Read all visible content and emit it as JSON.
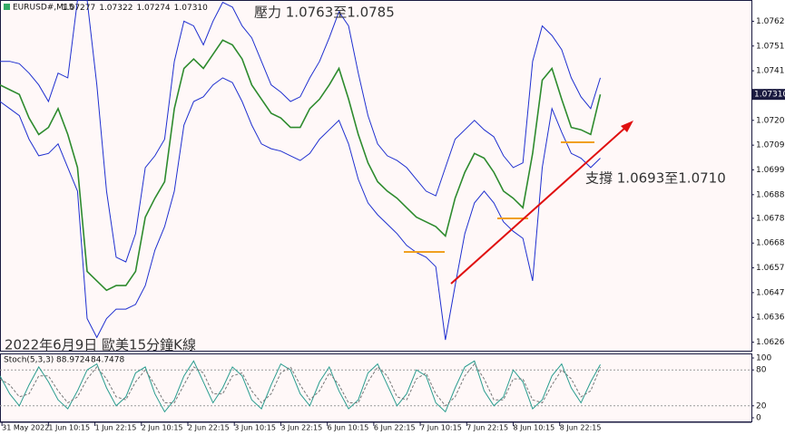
{
  "chart_data": [
    {
      "type": "line",
      "title": "EURUSD#,M15",
      "ohlc": [
        "1.07277",
        "1.07322",
        "1.07274",
        "1.07310"
      ],
      "x": [
        0,
        10,
        20,
        30,
        40,
        50,
        60,
        70,
        80,
        90,
        100,
        110,
        120,
        130,
        140,
        150,
        160,
        170,
        180,
        190,
        200,
        210,
        220,
        230,
        240,
        250,
        260,
        270,
        280,
        290,
        300,
        310,
        320,
        330,
        340,
        350,
        360,
        370,
        380,
        390,
        400,
        410,
        420,
        430,
        440,
        450,
        460,
        470,
        480,
        490,
        500,
        510,
        520,
        530,
        540,
        550,
        560,
        570,
        580,
        590,
        600,
        610,
        620
      ],
      "series": [
        {
          "color": "#2e8b2e",
          "values": [
            1.0735,
            1.0733,
            1.0731,
            1.0721,
            1.0714,
            1.0717,
            1.0725,
            1.0714,
            1.07,
            1.0656,
            1.0652,
            1.0648,
            1.065,
            1.065,
            1.0656,
            1.0679,
            1.0687,
            1.0694,
            1.0725,
            1.0742,
            1.0746,
            1.0742,
            1.0748,
            1.0754,
            1.0752,
            1.0746,
            1.0735,
            1.0729,
            1.0723,
            1.0721,
            1.0717,
            1.0717,
            1.0725,
            1.0729,
            1.0735,
            1.0742,
            1.0729,
            1.0714,
            1.0702,
            1.0694,
            1.069,
            1.0687,
            1.0683,
            1.0679,
            1.0677,
            1.0675,
            1.0671,
            1.0687,
            1.0698,
            1.0706,
            1.0704,
            1.0698,
            1.069,
            1.0687,
            1.0683,
            1.0706,
            1.0737,
            1.0742,
            1.0729,
            1.0717,
            1.0716,
            1.0714,
            1.0731
          ]
        },
        {
          "color": "#1f2fd0",
          "values": [
            1.0745,
            1.0745,
            1.0744,
            1.074,
            1.0735,
            1.0728,
            1.074,
            1.0738,
            1.0771,
            1.0771,
            1.0735,
            1.069,
            1.0662,
            1.066,
            1.0672,
            1.07,
            1.0705,
            1.0712,
            1.0745,
            1.0762,
            1.076,
            1.0752,
            1.0762,
            1.077,
            1.0768,
            1.076,
            1.0755,
            1.0745,
            1.0735,
            1.0732,
            1.0728,
            1.073,
            1.0738,
            1.0745,
            1.0755,
            1.0766,
            1.076,
            1.074,
            1.0722,
            1.071,
            1.0705,
            1.0703,
            1.07,
            1.0695,
            1.069,
            1.0688,
            1.07,
            1.0712,
            1.0716,
            1.072,
            1.0716,
            1.0713,
            1.0705,
            1.07,
            1.0702,
            1.0745,
            1.076,
            1.0756,
            1.075,
            1.0738,
            1.073,
            1.0725,
            1.0738
          ]
        },
        {
          "color": "#1f2fd0",
          "values": [
            1.0728,
            1.0725,
            1.0722,
            1.0712,
            1.0705,
            1.0706,
            1.071,
            1.07,
            1.069,
            1.0636,
            1.0628,
            1.0636,
            1.064,
            1.064,
            1.0642,
            1.065,
            1.0665,
            1.0675,
            1.069,
            1.0718,
            1.0728,
            1.073,
            1.0735,
            1.0738,
            1.0736,
            1.0728,
            1.0718,
            1.071,
            1.0708,
            1.0707,
            1.0705,
            1.0703,
            1.0706,
            1.0712,
            1.0716,
            1.072,
            1.071,
            1.0695,
            1.0685,
            1.068,
            1.0676,
            1.0672,
            1.0667,
            1.0664,
            1.0662,
            1.0658,
            1.0627,
            1.065,
            1.0672,
            1.0685,
            1.069,
            1.0685,
            1.0677,
            1.0673,
            1.067,
            1.0652,
            1.07,
            1.0725,
            1.0715,
            1.0706,
            1.0704,
            1.07,
            1.0704
          ]
        }
      ],
      "xlim": [
        0,
        776
      ],
      "ylim": [
        1.0622,
        1.0771
      ],
      "yticks": [
        {
          "value": 1.0762,
          "label": "1.07620"
        },
        {
          "value": 1.07515,
          "label": "1.07515"
        },
        {
          "value": 1.0741,
          "label": "1.07410"
        },
        {
          "value": 1.072,
          "label": "1.07200"
        },
        {
          "value": 1.07095,
          "label": "1.07095"
        },
        {
          "value": 1.0699,
          "label": "1.06990"
        },
        {
          "value": 1.06885,
          "label": "1.06885"
        },
        {
          "value": 1.06785,
          "label": "1.06785"
        },
        {
          "value": 1.0668,
          "label": "1.06680"
        },
        {
          "value": 1.06575,
          "label": "1.06575"
        },
        {
          "value": 1.0647,
          "label": "1.06470"
        },
        {
          "value": 1.06365,
          "label": "1.06365"
        },
        {
          "value": 1.0626,
          "label": "1.06260"
        }
      ],
      "current_price": {
        "value": 1.0731,
        "label": "1.07310"
      },
      "annotations": [
        "壓力 1.0763至1.0785",
        "支撐 1.0693至1.0710",
        "2022年6月9日 歐美15分鐘K線"
      ]
    },
    {
      "type": "line",
      "title": "Stoch(5,3,3)",
      "x": [
        0,
        10,
        20,
        30,
        40,
        50,
        60,
        70,
        80,
        90,
        100,
        110,
        120,
        130,
        140,
        150,
        160,
        170,
        180,
        190,
        200,
        210,
        220,
        230,
        240,
        250,
        260,
        270,
        280,
        290,
        300,
        310,
        320,
        330,
        340,
        350,
        360,
        370,
        380,
        390,
        400,
        410,
        420,
        430,
        440,
        450,
        460,
        470,
        480,
        490,
        500,
        510,
        520,
        530,
        540,
        550,
        560,
        570,
        580,
        590,
        600,
        610,
        620
      ],
      "series": [
        {
          "color": "#2a9d8f",
          "values": [
            70,
            40,
            20,
            55,
            85,
            60,
            30,
            15,
            45,
            80,
            90,
            50,
            20,
            35,
            75,
            85,
            40,
            10,
            30,
            70,
            95,
            60,
            25,
            50,
            85,
            70,
            30,
            15,
            55,
            90,
            80,
            40,
            20,
            60,
            85,
            45,
            15,
            30,
            75,
            90,
            55,
            20,
            40,
            80,
            70,
            25,
            10,
            50,
            85,
            95,
            45,
            20,
            35,
            80,
            60,
            15,
            30,
            70,
            90,
            50,
            25,
            60,
            88.9724
          ]
        },
        {
          "color": "#777777",
          "values": [
            65,
            55,
            35,
            40,
            70,
            70,
            45,
            25,
            35,
            65,
            85,
            65,
            35,
            30,
            60,
            80,
            55,
            25,
            25,
            55,
            85,
            75,
            40,
            40,
            70,
            75,
            45,
            25,
            40,
            75,
            85,
            55,
            30,
            45,
            75,
            55,
            25,
            25,
            60,
            85,
            70,
            35,
            30,
            65,
            75,
            40,
            20,
            35,
            70,
            90,
            65,
            30,
            30,
            65,
            65,
            30,
            25,
            55,
            80,
            65,
            35,
            45,
            84.7478
          ]
        }
      ],
      "xlim": [
        0,
        776
      ],
      "ylim": [
        -7.6,
        107.6
      ],
      "yticks": [
        100,
        80,
        20,
        0
      ],
      "levels": [
        80,
        20
      ],
      "xticks": [
        {
          "value": 2,
          "label": "31 May 2022"
        },
        {
          "value": 50,
          "label": "1 Jun 10:15"
        },
        {
          "value": 98,
          "label": "1 Jun 22:15"
        },
        {
          "value": 146,
          "label": "2 Jun 10:15"
        },
        {
          "value": 194,
          "label": "2 Jun 22:15"
        },
        {
          "value": 242,
          "label": "3 Jun 10:15"
        },
        {
          "value": 290,
          "label": "3 Jun 22:15"
        },
        {
          "value": 338,
          "label": "6 Jun 10:15"
        },
        {
          "value": 386,
          "label": "6 Jun 22:15"
        },
        {
          "value": 434,
          "label": "7 Jun 10:15"
        },
        {
          "value": 482,
          "label": "7 Jun 22:15"
        },
        {
          "value": 530,
          "label": "8 Jun 10:15"
        },
        {
          "value": 578,
          "label": "8 Jun 22:15"
        }
      ]
    }
  ]
}
